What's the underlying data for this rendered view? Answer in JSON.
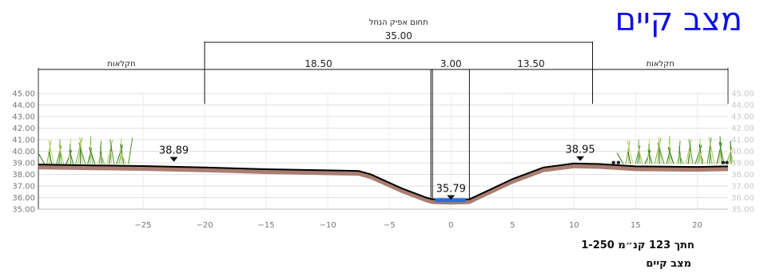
{
  "title": "מצב קיים",
  "caption_line1": "חתך 123 קנ״מ 1-250",
  "caption_line2": "מצב קיים",
  "top_label": "תחום אפיק הנחל",
  "total_width": "35.00",
  "segments": [
    "18.50",
    "3.00",
    "13.50"
  ],
  "zone_left": "חקלאות",
  "zone_right": "חקלאות",
  "elev_left": "38.89",
  "elev_bottom": "35.79",
  "elev_right": "38.95",
  "chart_data": {
    "type": "area",
    "title": "",
    "xlabel": "",
    "ylabel": "",
    "xlim": [
      -33.5,
      22.5
    ],
    "ylim": [
      35.0,
      45.0
    ],
    "x_ticks": [
      -25,
      -20,
      -15,
      -10,
      -5,
      0,
      5,
      10,
      15,
      20
    ],
    "y_ticks": [
      "35.00",
      "36.00",
      "37.00",
      "38.00",
      "39.00",
      "40.00",
      "41.00",
      "42.00",
      "43.00",
      "44.00",
      "45.00"
    ],
    "profile": [
      {
        "x": -33.5,
        "y": 38.85
      },
      {
        "x": -25,
        "y": 38.72
      },
      {
        "x": -20,
        "y": 38.6
      },
      {
        "x": -15,
        "y": 38.45
      },
      {
        "x": -10,
        "y": 38.35
      },
      {
        "x": -7.5,
        "y": 38.3
      },
      {
        "x": -6.5,
        "y": 38.0
      },
      {
        "x": -4,
        "y": 36.8
      },
      {
        "x": -2,
        "y": 36.0
      },
      {
        "x": -1.5,
        "y": 35.85
      },
      {
        "x": 0,
        "y": 35.8
      },
      {
        "x": 1.5,
        "y": 35.85
      },
      {
        "x": 2,
        "y": 36.1
      },
      {
        "x": 5,
        "y": 37.6
      },
      {
        "x": 7.5,
        "y": 38.6
      },
      {
        "x": 10,
        "y": 38.95
      },
      {
        "x": 12,
        "y": 38.9
      },
      {
        "x": 15,
        "y": 38.7
      },
      {
        "x": 20,
        "y": 38.65
      },
      {
        "x": 22.5,
        "y": 38.7
      }
    ],
    "water": {
      "x0": -1.3,
      "x1": 1.2,
      "y": 35.95
    },
    "markers": [
      {
        "x": -22.5,
        "y": 38.89,
        "label": "38.89"
      },
      {
        "x": 0,
        "y": 35.79,
        "label": "35.79"
      },
      {
        "x": 10.5,
        "y": 38.95,
        "label": "38.95"
      }
    ],
    "dimension_x": [
      -20,
      1.5,
      11.5
    ],
    "inner_lines_x": [
      -1.5,
      1.5
    ],
    "vegetation_x": [
      [
        -33,
        -26
      ],
      [
        14,
        23
      ]
    ],
    "fill_color": "#a07060",
    "line_color": "#000000",
    "water_color": "#2b6fd6",
    "title_color": "#1010e0"
  }
}
